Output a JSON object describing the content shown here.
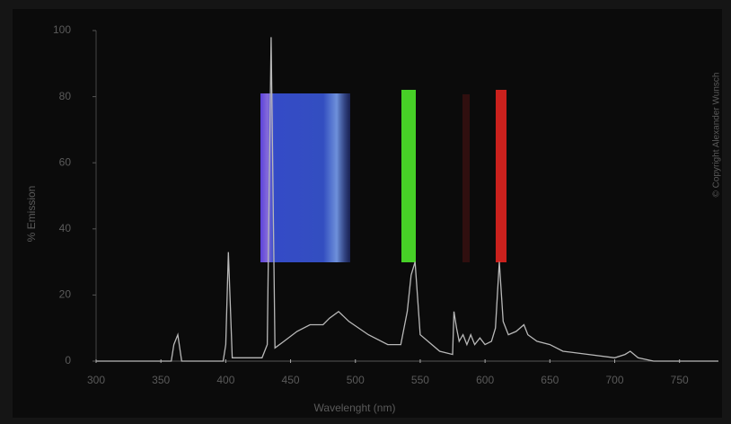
{
  "chart_data": {
    "type": "line",
    "ylabel": "% Emission",
    "xlabel": "Wavelenght (nm)",
    "annotation": "© Copyright Alexander Wunsch",
    "x": [
      300,
      358,
      360,
      363,
      366,
      398,
      400,
      402,
      405,
      428,
      432,
      435,
      438,
      445,
      455,
      465,
      475,
      480,
      487,
      495,
      510,
      525,
      535,
      540,
      543,
      546,
      550,
      565,
      575,
      576,
      578,
      580,
      583,
      586,
      589,
      592,
      596,
      600,
      605,
      608,
      611,
      614,
      618,
      624,
      630,
      633,
      640,
      650,
      660,
      680,
      700,
      708,
      712,
      718,
      730,
      780
    ],
    "values": [
      0,
      0,
      5,
      8,
      0,
      0,
      5,
      33,
      1,
      1,
      5,
      98,
      4,
      6,
      9,
      11,
      11,
      13,
      15,
      12,
      8,
      5,
      5,
      15,
      26,
      30,
      8,
      3,
      2,
      15,
      10,
      6,
      8,
      5,
      8,
      5,
      7,
      5,
      6,
      10,
      30,
      12,
      8,
      9,
      11,
      8,
      6,
      5,
      3,
      2,
      1,
      2,
      3,
      1,
      0,
      0
    ],
    "color": "#b8b8b8",
    "xlim": [
      300,
      780
    ],
    "xticks": [
      300,
      350,
      400,
      450,
      500,
      550,
      600,
      650,
      700,
      750
    ],
    "ylim": [
      0,
      100
    ],
    "yticks": [
      0,
      20,
      40,
      60,
      80,
      100
    ]
  }
}
